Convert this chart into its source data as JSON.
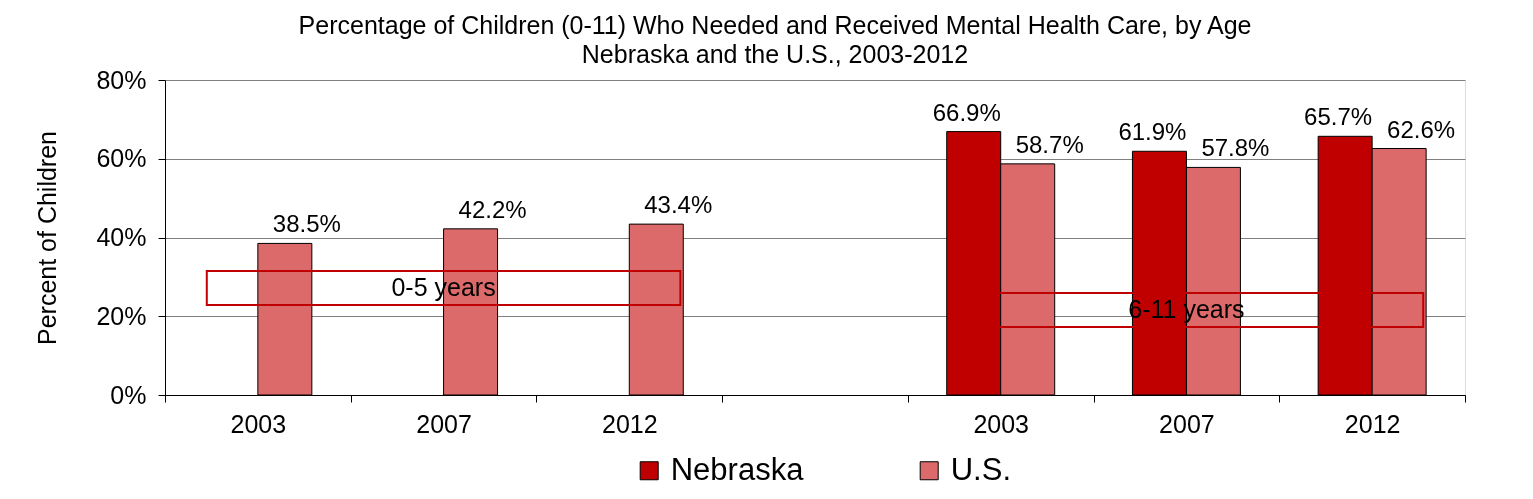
{
  "chart_data": {
    "type": "bar",
    "title": "Percentage of Children (0-11) Who Needed and Received Mental Health Care, by Age",
    "subtitle": "Nebraska and the U.S., 2003-2012",
    "ylabel": "Percent of Children",
    "categories": [
      "2003",
      "2007",
      "2012",
      null,
      "2003",
      "2007",
      "2012"
    ],
    "series": [
      {
        "name": "Nebraska",
        "color": "#c00000",
        "values": [
          null,
          null,
          null,
          null,
          66.9,
          61.9,
          65.7
        ],
        "value_labels": [
          null,
          null,
          null,
          null,
          "66.9%",
          "61.9%",
          "65.7%"
        ]
      },
      {
        "name": "U.S.",
        "color": "#dd6a6a",
        "values": [
          38.5,
          42.2,
          43.4,
          null,
          58.7,
          57.8,
          62.6
        ],
        "value_labels": [
          "38.5%",
          "42.2%",
          "43.4%",
          null,
          "58.7%",
          "57.8%",
          "62.6%"
        ]
      }
    ],
    "ylim": [
      0,
      80
    ],
    "yticks": [
      {
        "value": 0,
        "label": "0%"
      },
      {
        "value": 20,
        "label": "20%"
      },
      {
        "value": 40,
        "label": "40%"
      },
      {
        "value": 60,
        "label": "60%"
      },
      {
        "value": 80,
        "label": "80%"
      }
    ],
    "grid": "y",
    "legend": "bottom",
    "annotations": [
      "0-5 years",
      "6-11 years"
    ]
  }
}
